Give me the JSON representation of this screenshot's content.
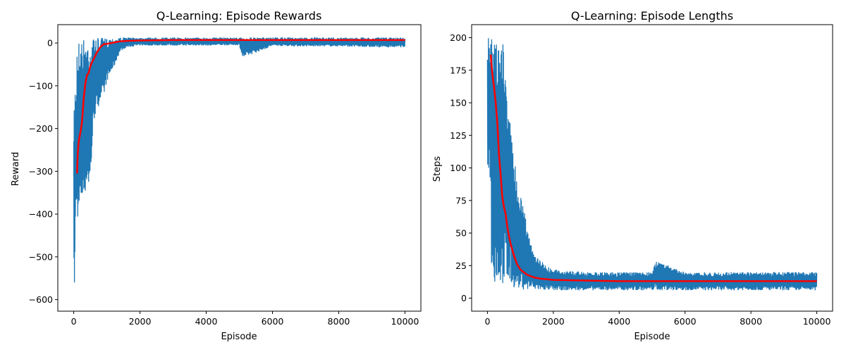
{
  "chart_data": [
    {
      "type": "line",
      "title": "Q-Learning: Episode Rewards",
      "xlabel": "Episode",
      "ylabel": "Reward",
      "xlim": [
        -480,
        10480
      ],
      "ylim": [
        -627,
        43
      ],
      "xticks": [
        0,
        2000,
        4000,
        6000,
        8000,
        10000
      ],
      "yticks": [
        -600,
        -500,
        -400,
        -300,
        -200,
        -100,
        0
      ],
      "xtick_labels": [
        "0",
        "2000",
        "4000",
        "6000",
        "8000",
        "10000"
      ],
      "ytick_labels": [
        "−600",
        "−500",
        "−400",
        "−300",
        "−200",
        "−100",
        "0"
      ],
      "grid": false,
      "series": [
        {
          "style": "raw",
          "color": "#1f77b4",
          "x": [
            0,
            20,
            40,
            60,
            80,
            100,
            150,
            200,
            250,
            300,
            350,
            400,
            450,
            500,
            600,
            700,
            800,
            900,
            1000,
            1200,
            1400,
            1600,
            1800,
            2000,
            3000,
            4000,
            5000,
            5100,
            6000,
            7000,
            8000,
            9000,
            10000
          ],
          "lower": [
            -605,
            -590,
            -540,
            -420,
            -380,
            -390,
            -440,
            -385,
            -380,
            -370,
            -350,
            -330,
            -345,
            -345,
            -185,
            -160,
            -135,
            -130,
            -90,
            -60,
            -20,
            -10,
            -8,
            -6,
            -6,
            -6,
            -5,
            -35,
            -7,
            -8,
            -8,
            -10,
            -10
          ],
          "upper": [
            -230,
            -80,
            -85,
            -85,
            -80,
            5,
            12,
            12,
            12,
            12,
            12,
            12,
            12,
            12,
            12,
            12,
            12,
            12,
            12,
            13,
            13,
            13,
            13,
            13,
            13,
            13,
            13,
            13,
            13,
            13,
            13,
            13,
            13
          ]
        },
        {
          "style": "moving-average",
          "color": "#ff0000",
          "x": [
            100,
            120,
            150,
            200,
            250,
            300,
            350,
            400,
            450,
            500,
            550,
            600,
            700,
            800,
            900,
            1000,
            1200,
            1400,
            1600,
            2000,
            3000,
            4000,
            5000,
            6000,
            7000,
            8000,
            9000,
            10000
          ],
          "values": [
            -305,
            -260,
            -230,
            -210,
            -185,
            -130,
            -95,
            -75,
            -70,
            -55,
            -45,
            -38,
            -22,
            -10,
            -3,
            -2,
            1,
            4,
            5,
            6,
            7,
            7,
            7,
            7,
            7,
            7,
            7,
            7
          ]
        }
      ]
    },
    {
      "type": "line",
      "title": "Q-Learning: Episode Lengths",
      "xlabel": "Episode",
      "ylabel": "Steps",
      "xlim": [
        -480,
        10480
      ],
      "ylim": [
        -10,
        210
      ],
      "xticks": [
        0,
        2000,
        4000,
        6000,
        8000,
        10000
      ],
      "yticks": [
        0,
        25,
        50,
        75,
        100,
        125,
        150,
        175,
        200
      ],
      "xtick_labels": [
        "0",
        "2000",
        "4000",
        "6000",
        "8000",
        "10000"
      ],
      "ytick_labels": [
        "0",
        "25",
        "50",
        "75",
        "100",
        "125",
        "150",
        "175",
        "200"
      ],
      "grid": false,
      "series": [
        {
          "style": "raw",
          "color": "#1f77b4",
          "x": [
            0,
            50,
            100,
            120,
            150,
            200,
            250,
            300,
            350,
            400,
            450,
            500,
            550,
            600,
            700,
            800,
            900,
            1000,
            1200,
            1400,
            1600,
            1800,
            2000,
            3000,
            4000,
            5000,
            5100,
            6000,
            7000,
            8000,
            9000,
            10000
          ],
          "lower": [
            95,
            100,
            85,
            20,
            15,
            12,
            10,
            10,
            10,
            10,
            10,
            10,
            10,
            8,
            8,
            8,
            7,
            7,
            6,
            6,
            6,
            6,
            6,
            6,
            6,
            6,
            6,
            6,
            6,
            6,
            6,
            6
          ],
          "upper": [
            200,
            200,
            200,
            200,
            200,
            200,
            200,
            200,
            200,
            200,
            200,
            200,
            200,
            140,
            140,
            110,
            90,
            85,
            55,
            35,
            30,
            25,
            22,
            20,
            20,
            20,
            29,
            20,
            20,
            20,
            20,
            20
          ]
        },
        {
          "style": "moving-average",
          "color": "#ff0000",
          "x": [
            100,
            120,
            150,
            200,
            250,
            300,
            350,
            400,
            450,
            500,
            550,
            600,
            650,
            700,
            800,
            900,
            1000,
            1200,
            1400,
            1600,
            2000,
            3000,
            4000,
            5000,
            6000,
            7000,
            8000,
            9000,
            10000
          ],
          "values": [
            187,
            180,
            172,
            162,
            150,
            135,
            110,
            95,
            78,
            70,
            65,
            55,
            48,
            42,
            33,
            26,
            22,
            18,
            16,
            15,
            14,
            13.5,
            13,
            13,
            13,
            13,
            13,
            13,
            13
          ]
        }
      ]
    }
  ]
}
